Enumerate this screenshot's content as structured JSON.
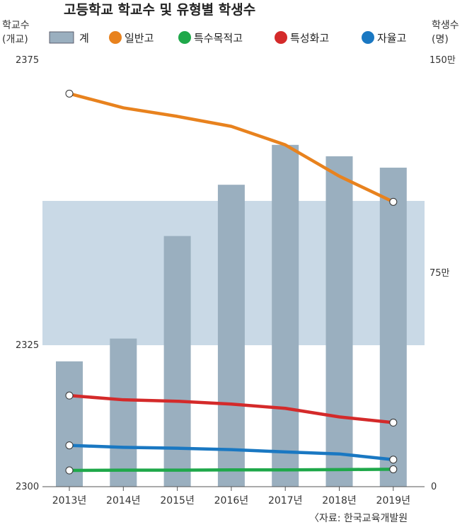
{
  "title": "고등학교 학교수 및 유형별 학생수",
  "source": "〈자료: 한국교육개발원",
  "left_axis": {
    "label_line1": "학교수",
    "label_line2": "(개교)",
    "ticks": [
      "2375",
      "2325",
      "2300"
    ]
  },
  "right_axis": {
    "label_line1": "학생수",
    "label_line2": "(명)",
    "ticks": [
      "150만",
      "75만",
      "0"
    ]
  },
  "legend": [
    {
      "label": "계",
      "color": "#9aafbf",
      "shape": "bar"
    },
    {
      "label": "일반고",
      "color": "#e8821e",
      "shape": "dot"
    },
    {
      "label": "특수목적고",
      "color": "#1fa84a",
      "shape": "dot"
    },
    {
      "label": "특성화고",
      "color": "#d42a2a",
      "shape": "dot"
    },
    {
      "label": "자율고",
      "color": "#1a78c2",
      "shape": "dot"
    }
  ],
  "chart_data": {
    "type": "bar",
    "categories": [
      "2013년",
      "2014년",
      "2015년",
      "2016년",
      "2017년",
      "2018년",
      "2019년"
    ],
    "series": [
      {
        "name": "계",
        "type": "bar",
        "axis": "left",
        "color": "#9aafbf",
        "values": [
          2322,
          2326,
          2344,
          2353,
          2360,
          2358,
          2356
        ]
      },
      {
        "name": "일반고",
        "type": "line",
        "axis": "right",
        "color": "#e8821e",
        "values": [
          1380000,
          1330000,
          1300000,
          1265000,
          1200000,
          1090000,
          1000000
        ]
      },
      {
        "name": "특수목적고",
        "type": "line",
        "axis": "right",
        "color": "#1fa84a",
        "values": [
          57000,
          58000,
          58000,
          59000,
          59000,
          60000,
          61000
        ]
      },
      {
        "name": "특성화고",
        "type": "line",
        "axis": "right",
        "color": "#d42a2a",
        "values": [
          320000,
          305000,
          300000,
          290000,
          275000,
          245000,
          225000
        ]
      },
      {
        "name": "자율고",
        "type": "line",
        "axis": "right",
        "color": "#1a78c2",
        "values": [
          145000,
          138000,
          135000,
          130000,
          122000,
          115000,
          95000
        ]
      }
    ],
    "left_ylim": [
      2300,
      2375
    ],
    "right_ylim": [
      0,
      1500000
    ],
    "grid": false,
    "legend_position": "top"
  }
}
